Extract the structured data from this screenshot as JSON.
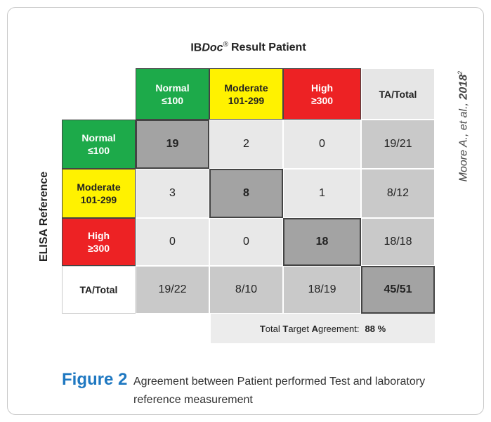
{
  "header": {
    "title": {
      "prefix": "IB",
      "italic": "Doc",
      "sup": "®",
      "suffix": "Result Patient"
    }
  },
  "side_label": "ELISA Reference",
  "citation": {
    "text": "Moore A., et al.,",
    "year": "2018",
    "ref": "2"
  },
  "table": {
    "columns": [
      {
        "label": "Normal",
        "range": "≤100"
      },
      {
        "label": "Moderate",
        "range": "101-299"
      },
      {
        "label": "High",
        "range": "≥300"
      }
    ],
    "total_label": "TA/Total",
    "rows": [
      {
        "label": "Normal",
        "range": "≤100",
        "cells": [
          "19",
          "2",
          "0"
        ],
        "total": "19/21"
      },
      {
        "label": "Moderate",
        "range": "101-299",
        "cells": [
          "3",
          "8",
          "1"
        ],
        "total": "8/12"
      },
      {
        "label": "High",
        "range": "≥300",
        "cells": [
          "0",
          "0",
          "18"
        ],
        "total": "18/18"
      }
    ],
    "totals": [
      "19/22",
      "8/10",
      "18/19"
    ],
    "grand_total": "45/51"
  },
  "agreement": {
    "parts": [
      "T",
      "otal ",
      "T",
      "arget ",
      "A",
      "greement:"
    ],
    "value": "88 %"
  },
  "figure": {
    "label": "Figure 2",
    "caption": "Agreement between Patient performed Test and laboratory reference measurement"
  }
}
